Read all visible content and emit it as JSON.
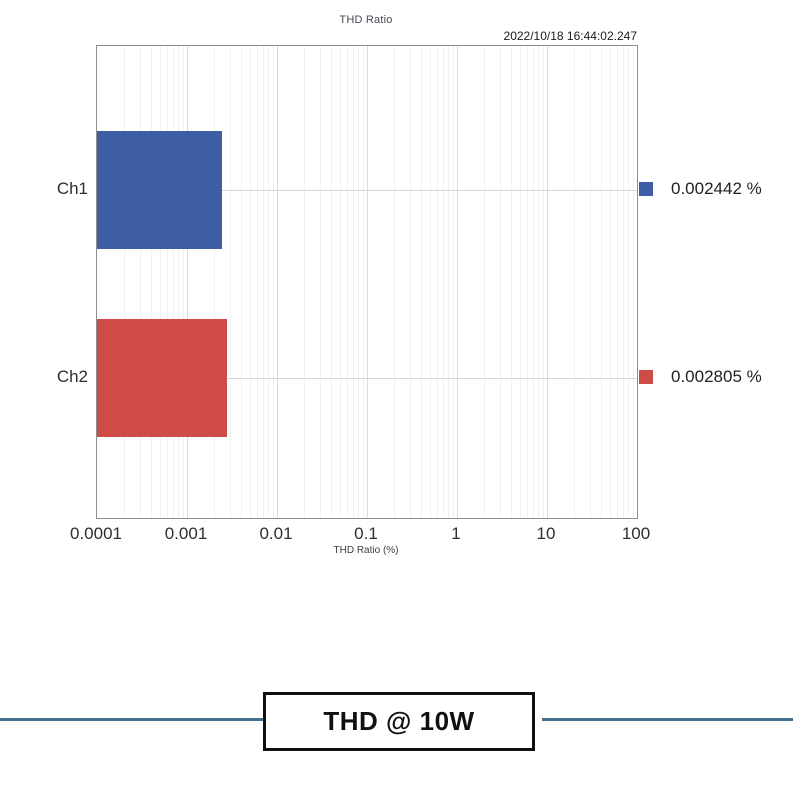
{
  "header": {
    "timestamp": "2022/10/18 16:44:02.247"
  },
  "chart_data": {
    "type": "bar",
    "orientation": "horizontal",
    "title": "THD Ratio",
    "xlabel": "THD Ratio (%)",
    "x_scale": "log",
    "xlim": [
      0.0001,
      100
    ],
    "x_ticks": [
      "0.0001",
      "0.001",
      "0.01",
      "0.1",
      "1",
      "10",
      "100"
    ],
    "categories": [
      "Ch1",
      "Ch2"
    ],
    "series": [
      {
        "name": "Ch1",
        "value": 0.002442,
        "value_label": "0.002442 %",
        "color": "#3d5da4"
      },
      {
        "name": "Ch2",
        "value": 0.002805,
        "value_label": "0.002805 %",
        "color": "#cf4b47"
      }
    ],
    "legend_position": "right",
    "grid": true
  },
  "footer": {
    "label": "THD @ 10W",
    "line_color": "#44708e"
  }
}
